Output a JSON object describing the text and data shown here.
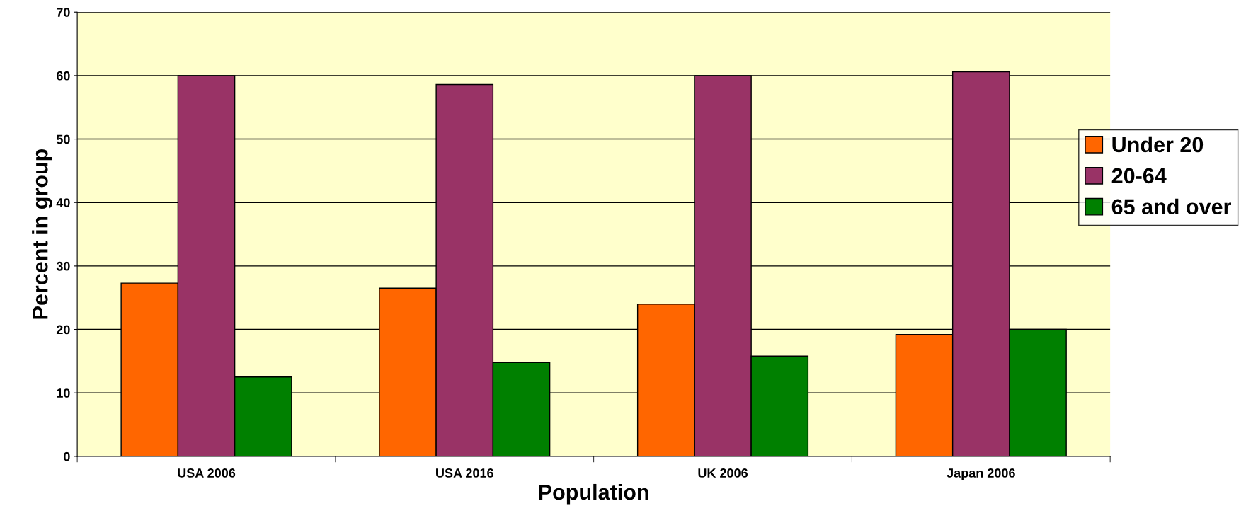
{
  "chart_data": {
    "type": "bar",
    "xlabel": "Population",
    "ylabel": "Percent in group",
    "categories": [
      "USA 2006",
      "USA 2016",
      "UK 2006",
      "Japan 2006"
    ],
    "series": [
      {
        "name": "Under 20",
        "color": "#ff6600",
        "values": [
          27.3,
          26.5,
          24.0,
          19.2
        ]
      },
      {
        "name": "20-64",
        "color": "#993366",
        "values": [
          60.0,
          58.6,
          60.0,
          60.6
        ]
      },
      {
        "name": "65 and over",
        "color": "#008000",
        "values": [
          12.5,
          14.8,
          15.8,
          20.0
        ]
      }
    ],
    "ylim": [
      0,
      70
    ],
    "yticks": [
      0,
      10,
      20,
      30,
      40,
      50,
      60,
      70
    ],
    "grid": "y",
    "legend": "right"
  }
}
